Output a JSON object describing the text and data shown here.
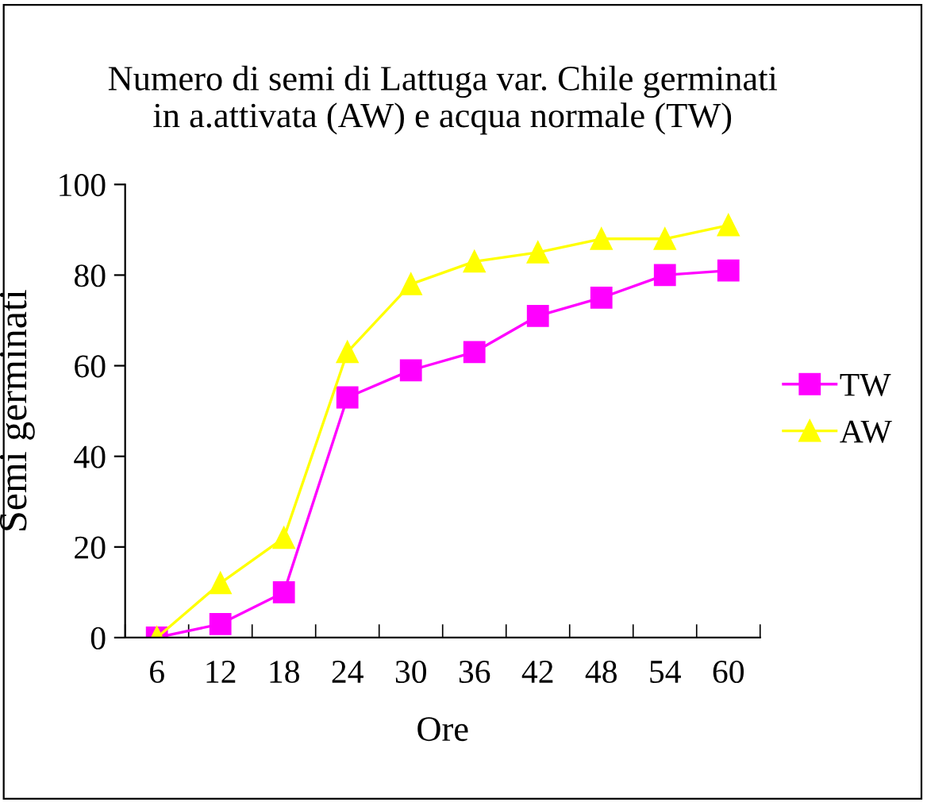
{
  "chart_data": {
    "type": "line",
    "title": "Numero di semi di Lattuga var. Chile germinati\nin a.attivata (AW) e acqua normale (TW)",
    "xlabel": "Ore",
    "ylabel": "Semi germinati",
    "categories": [
      "6",
      "12",
      "18",
      "24",
      "30",
      "36",
      "42",
      "48",
      "54",
      "60"
    ],
    "series": [
      {
        "name": "TW",
        "color": "#ff00ff",
        "marker": "square",
        "values": [
          0,
          3,
          10,
          53,
          59,
          63,
          71,
          75,
          80,
          81
        ]
      },
      {
        "name": "AW",
        "color": "#ffff00",
        "marker": "triangle",
        "values": [
          0,
          12,
          22,
          63,
          78,
          83,
          85,
          88,
          88,
          91
        ]
      }
    ],
    "ylim": [
      0,
      100
    ],
    "yticks": [
      0,
      20,
      40,
      60,
      80,
      100
    ],
    "grid": false,
    "legend": "right"
  }
}
